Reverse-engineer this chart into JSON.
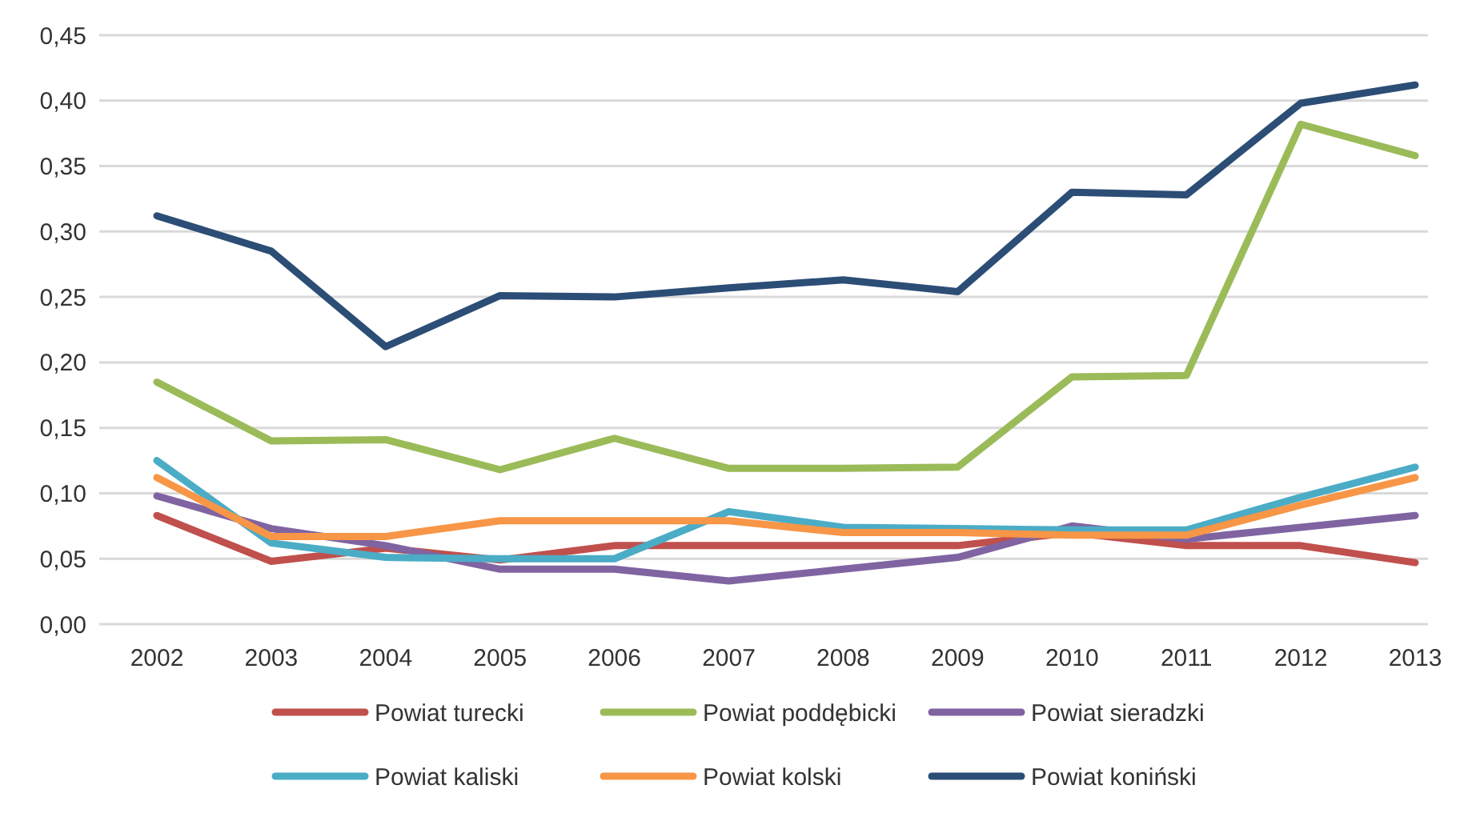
{
  "chart_data": {
    "type": "line",
    "categories": [
      "2002",
      "2003",
      "2004",
      "2005",
      "2006",
      "2007",
      "2008",
      "2009",
      "2010",
      "2011",
      "2012",
      "2013"
    ],
    "ylim": [
      0,
      0.45
    ],
    "yticks": [
      {
        "value": 0,
        "label": "0,00"
      },
      {
        "value": 0.05,
        "label": "0,05"
      },
      {
        "value": 0.1,
        "label": "0,10"
      },
      {
        "value": 0.15,
        "label": "0,15"
      },
      {
        "value": 0.2,
        "label": "0,20"
      },
      {
        "value": 0.25,
        "label": "0,25"
      },
      {
        "value": 0.3,
        "label": "0,30"
      },
      {
        "value": 0.35,
        "label": "0,35"
      },
      {
        "value": 0.4,
        "label": "0,40"
      },
      {
        "value": 0.45,
        "label": "0,45"
      }
    ],
    "grid": "y",
    "legend": "bottom",
    "marker": "none",
    "line_style": "solid",
    "series": [
      {
        "name": "Powiat turecki",
        "color": "#c0504d",
        "values": [
          0.083,
          0.048,
          0.058,
          0.049,
          0.06,
          0.06,
          0.06,
          0.06,
          0.07,
          0.06,
          0.06,
          0.047
        ]
      },
      {
        "name": "Powiat poddębicki",
        "color": "#9bbb59",
        "values": [
          0.185,
          0.14,
          0.141,
          0.118,
          0.142,
          0.119,
          0.119,
          0.12,
          0.189,
          0.19,
          0.382,
          0.358
        ]
      },
      {
        "name": "Powiat sieradzki",
        "color": "#8064a2",
        "values": [
          0.098,
          0.073,
          0.06,
          0.042,
          0.042,
          0.033,
          0.042,
          0.051,
          0.075,
          0.065,
          0.074,
          0.083
        ]
      },
      {
        "name": "Powiat kaliski",
        "color": "#4bacc6",
        "values": [
          0.125,
          0.062,
          0.051,
          0.05,
          0.05,
          0.086,
          0.074,
          0.073,
          0.072,
          0.072,
          0.097,
          0.12
        ]
      },
      {
        "name": "Powiat kolski",
        "color": "#f79646",
        "values": [
          0.112,
          0.067,
          0.067,
          0.079,
          0.079,
          0.079,
          0.07,
          0.07,
          0.068,
          0.068,
          0.091,
          0.112
        ]
      },
      {
        "name": "Powiat koniński",
        "color": "#2c4d75",
        "values": [
          0.312,
          0.285,
          0.212,
          0.251,
          0.25,
          0.257,
          0.263,
          0.254,
          0.33,
          0.328,
          0.398,
          0.412
        ]
      }
    ]
  }
}
